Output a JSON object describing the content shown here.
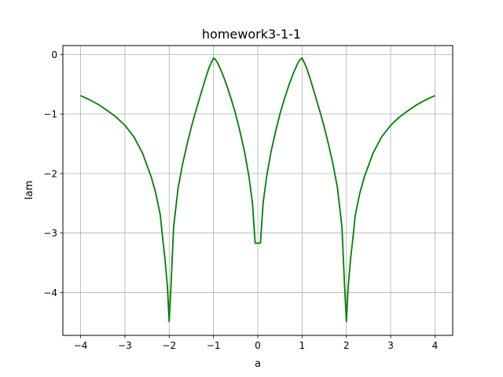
{
  "chart_data": {
    "type": "line",
    "title": "homework3-1-1",
    "xlabel": "a",
    "ylabel": "lam",
    "xlim": [
      -4.4,
      4.4
    ],
    "ylim": [
      -4.72,
      0.15
    ],
    "xticks": [
      -4,
      -3,
      -2,
      -1,
      0,
      1,
      2,
      3,
      4
    ],
    "xtick_labels": [
      "−4",
      "−3",
      "−2",
      "−1",
      "0",
      "1",
      "2",
      "3",
      "4"
    ],
    "yticks": [
      -4,
      -3,
      -2,
      -1,
      0
    ],
    "ytick_labels": [
      "−4",
      "−3",
      "−2",
      "−1",
      "0"
    ],
    "grid": true,
    "legend": "none",
    "series": [
      {
        "color": "#008000",
        "x": [
          -4.0,
          -3.8,
          -3.6,
          -3.4,
          -3.2,
          -3.0,
          -2.8,
          -2.6,
          -2.4,
          -2.3,
          -2.2,
          -2.16,
          -2.1,
          -2.04,
          -2.0,
          -1.96,
          -1.9,
          -1.8,
          -1.7,
          -1.6,
          -1.5,
          -1.4,
          -1.3,
          -1.2,
          -1.1,
          -1.0,
          -0.96,
          -0.9,
          -0.8,
          -0.7,
          -0.6,
          -0.5,
          -0.4,
          -0.3,
          -0.2,
          -0.12,
          -0.06,
          -0.02,
          0.02,
          0.06,
          0.12,
          0.2,
          0.3,
          0.4,
          0.5,
          0.6,
          0.7,
          0.8,
          0.9,
          0.96,
          1.0,
          1.1,
          1.2,
          1.3,
          1.4,
          1.5,
          1.6,
          1.7,
          1.8,
          1.9,
          1.96,
          2.0,
          2.04,
          2.1,
          2.16,
          2.2,
          2.3,
          2.4,
          2.6,
          2.8,
          3.0,
          3.2,
          3.4,
          3.6,
          3.8,
          4.0
        ],
        "y": [
          -0.69,
          -0.76,
          -0.84,
          -0.94,
          -1.05,
          -1.19,
          -1.38,
          -1.66,
          -2.07,
          -2.34,
          -2.7,
          -3.0,
          -3.4,
          -3.9,
          -4.49,
          -3.9,
          -2.9,
          -2.25,
          -1.85,
          -1.52,
          -1.22,
          -0.95,
          -0.7,
          -0.45,
          -0.22,
          -0.06,
          -0.08,
          -0.15,
          -0.32,
          -0.52,
          -0.75,
          -1.0,
          -1.3,
          -1.63,
          -2.05,
          -2.5,
          -3.17,
          -3.17,
          -3.17,
          -3.17,
          -2.5,
          -2.05,
          -1.63,
          -1.3,
          -1.0,
          -0.75,
          -0.52,
          -0.32,
          -0.15,
          -0.08,
          -0.06,
          -0.22,
          -0.45,
          -0.7,
          -0.95,
          -1.22,
          -1.52,
          -1.85,
          -2.25,
          -2.9,
          -3.9,
          -4.49,
          -3.9,
          -3.4,
          -3.0,
          -2.7,
          -2.34,
          -2.07,
          -1.66,
          -1.38,
          -1.19,
          -1.05,
          -0.94,
          -0.84,
          -0.76,
          -0.69
        ]
      }
    ]
  }
}
